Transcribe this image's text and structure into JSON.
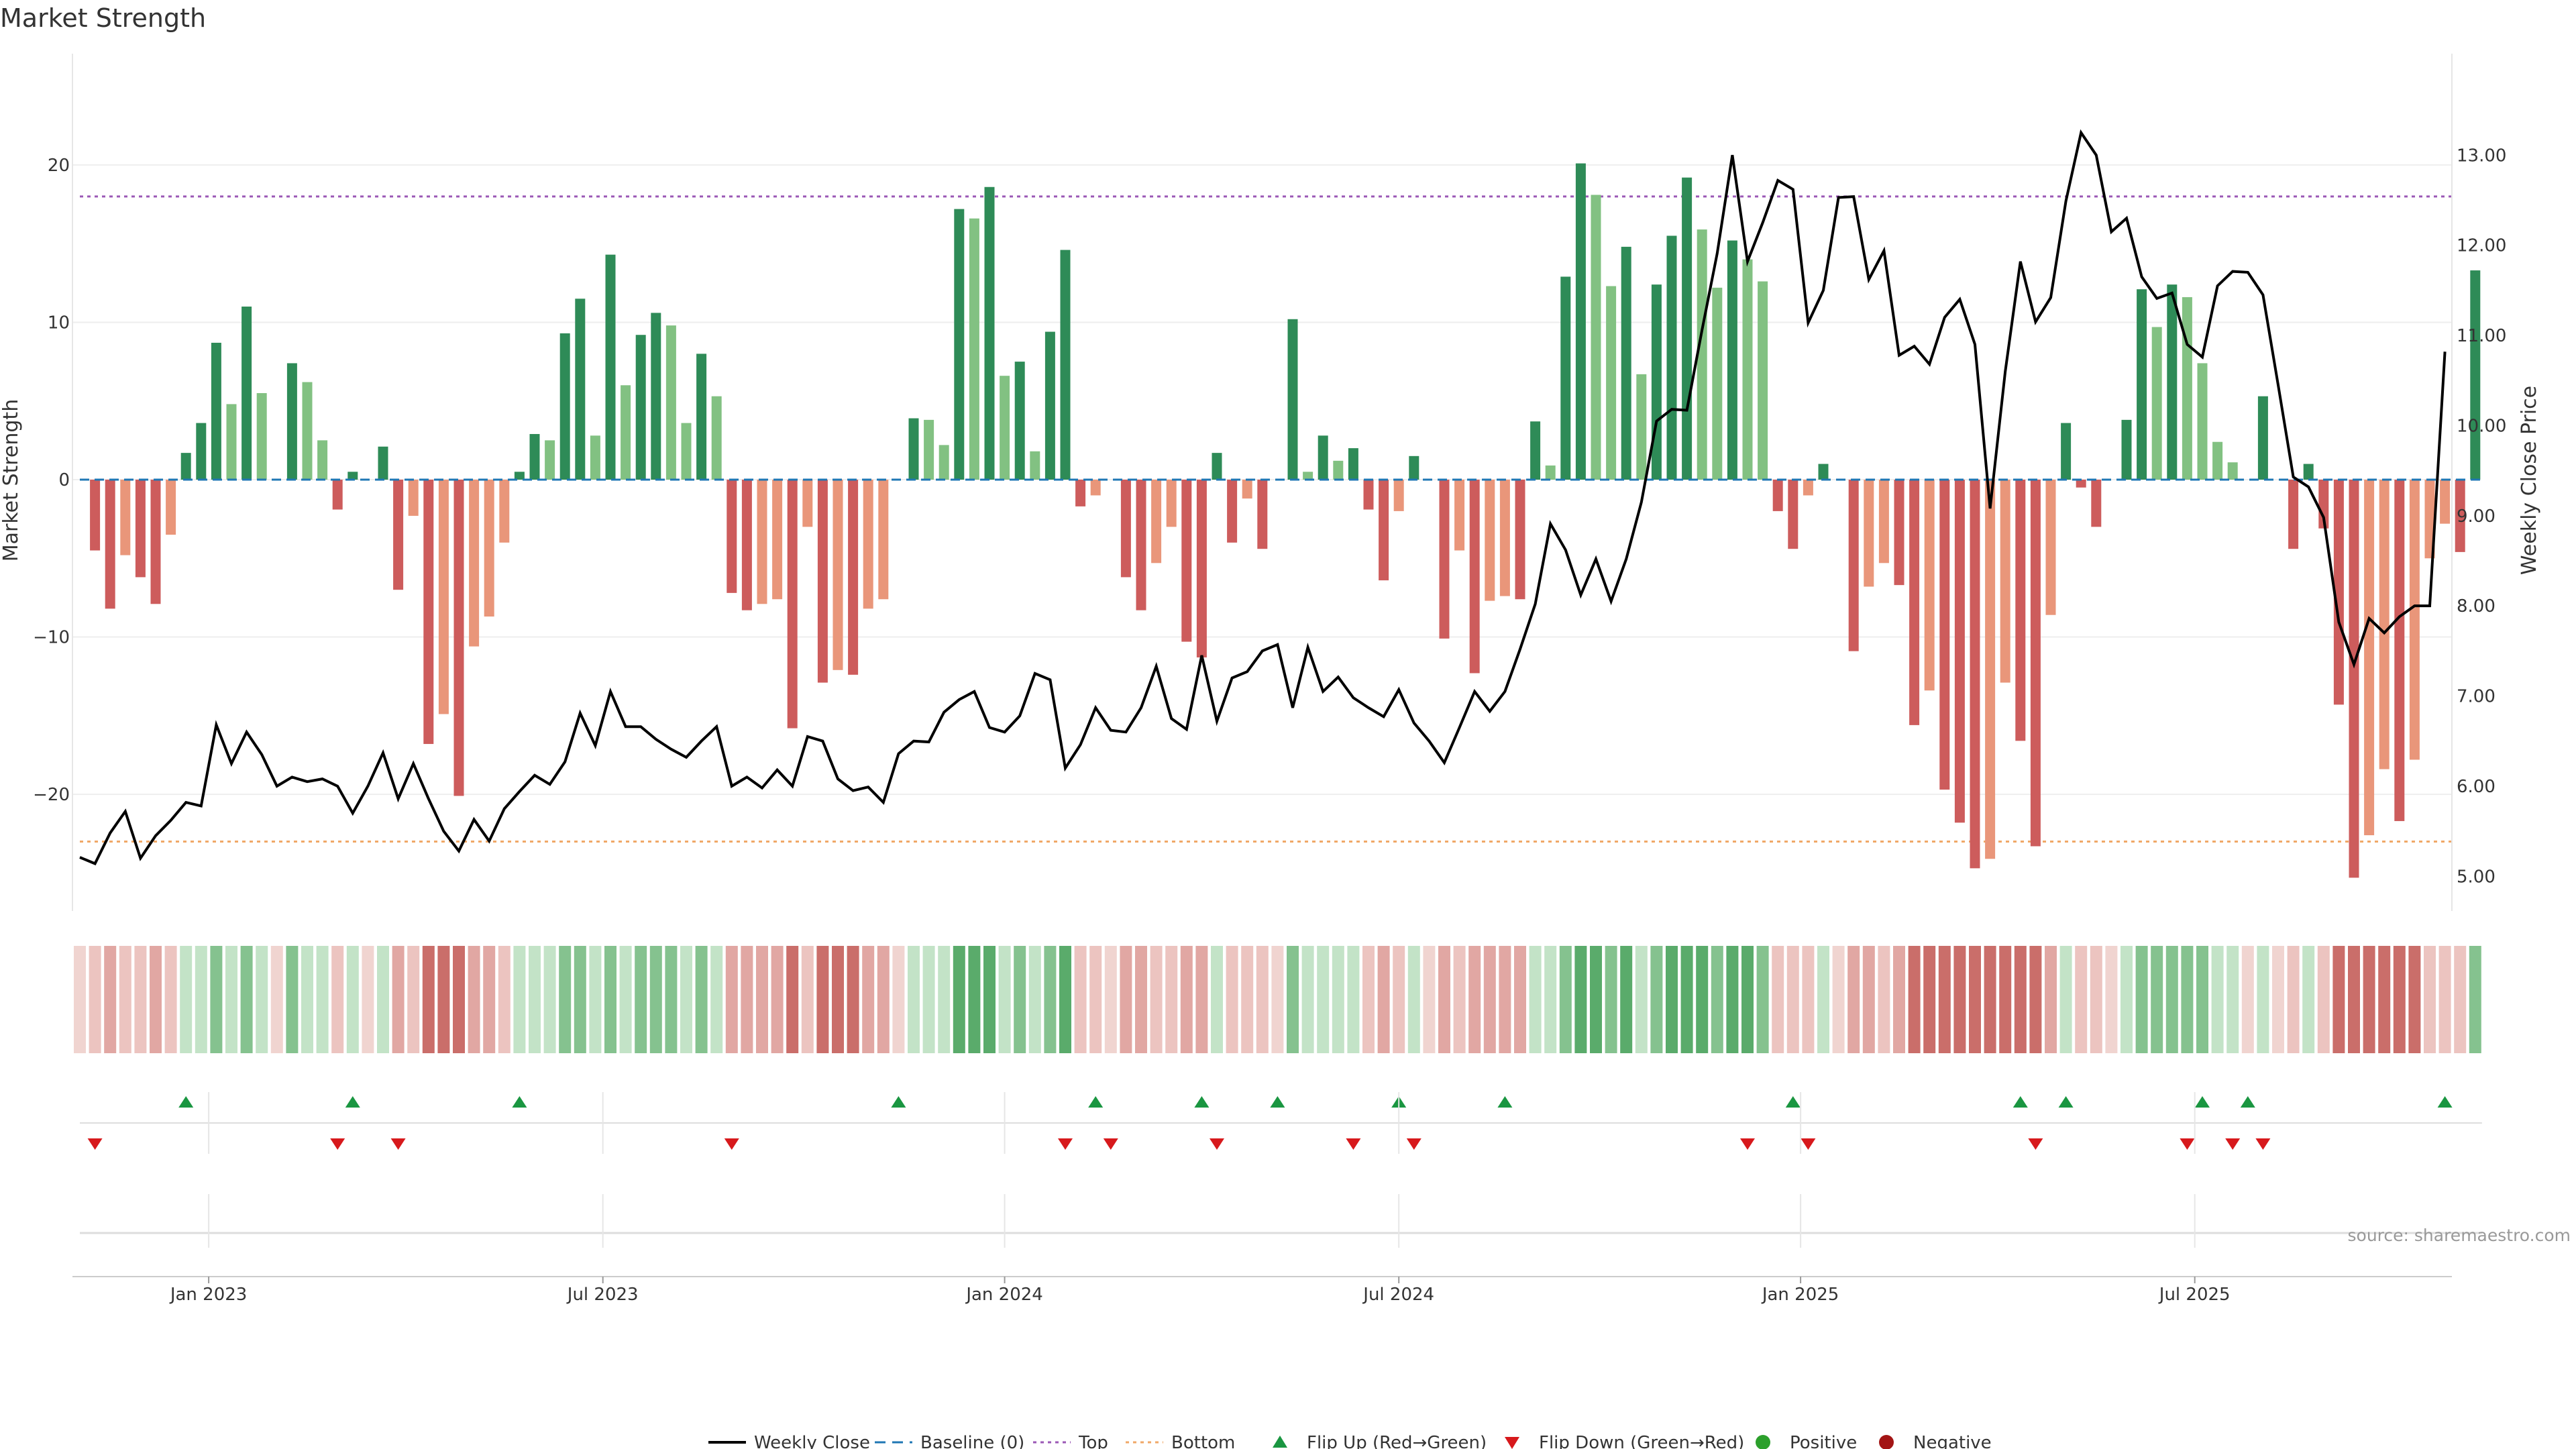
{
  "chart_data": {
    "type": "bar",
    "title": "Market Strength",
    "ylabel": "Market Strength",
    "y2label": "Weekly Close Price",
    "ylim": [
      -27.5,
      27.5
    ],
    "y2lim": [
      4.6,
      14.2
    ],
    "yticks": [
      -20,
      -10,
      0,
      10,
      20
    ],
    "y2ticks": [
      "5.00",
      "6.00",
      "7.00",
      "8.00",
      "9.00",
      "10.00",
      "11.00",
      "12.00",
      "13.00"
    ],
    "top_threshold": 18,
    "bottom_threshold": -23,
    "xticks": [
      {
        "label": "Jan 2023",
        "week": 8.5
      },
      {
        "label": "Jul 2023",
        "week": 34.5
      },
      {
        "label": "Jan 2024",
        "week": 61
      },
      {
        "label": "Jul 2024",
        "week": 87
      },
      {
        "label": "Jan 2025",
        "week": 113.5
      },
      {
        "label": "Jul 2025",
        "week": 139.5
      }
    ],
    "strength": [
      0,
      -4.5,
      -8.2,
      -4.8,
      -6.2,
      -7.9,
      -3.5,
      1.7,
      3.6,
      8.7,
      4.8,
      11.0,
      5.5,
      0,
      7.4,
      6.2,
      2.5,
      -1.9,
      0.5,
      0,
      2.1,
      -7.0,
      -2.3,
      -16.8,
      -14.9,
      -20.1,
      -10.6,
      -8.7,
      -4.0,
      0.5,
      2.9,
      2.5,
      9.3,
      11.5,
      2.8,
      14.3,
      6.0,
      9.2,
      10.6,
      9.8,
      3.6,
      8.0,
      5.3,
      -7.2,
      -8.3,
      -7.9,
      -7.6,
      -15.8,
      -3.0,
      -12.9,
      -12.1,
      -12.4,
      -8.2,
      -7.6,
      0,
      3.9,
      3.8,
      2.2,
      17.2,
      16.6,
      18.6,
      6.6,
      7.5,
      1.8,
      9.4,
      14.6,
      -1.7,
      -1.0,
      0,
      -6.2,
      -8.3,
      -5.3,
      -3.0,
      -10.3,
      -11.3,
      1.7,
      -4.0,
      -1.2,
      -4.4,
      0,
      10.2,
      0.5,
      2.8,
      1.2,
      2.0,
      -1.9,
      -6.4,
      -2.0,
      1.5,
      0,
      -10.1,
      -4.5,
      -12.3,
      -7.7,
      -7.4,
      -7.6,
      3.7,
      0.9,
      12.9,
      20.1,
      18.1,
      12.3,
      14.8,
      6.7,
      12.4,
      15.5,
      19.2,
      15.9,
      12.2,
      15.2,
      14.0,
      12.6,
      -2.0,
      -4.4,
      -1.0,
      1.0,
      0,
      -10.9,
      -6.8,
      -5.3,
      -6.7,
      -15.6,
      -13.4,
      -19.7,
      -21.8,
      -24.7,
      -24.1,
      -12.9,
      -16.6,
      -23.3,
      -8.6,
      3.6,
      -0.5,
      -3.0,
      0,
      3.8,
      12.1,
      9.7,
      12.4,
      11.6,
      7.4,
      2.4,
      1.1,
      0,
      5.3,
      0,
      -4.4,
      1.0,
      -3.1,
      -14.3,
      -25.3,
      -22.6,
      -18.4,
      -21.7,
      -17.8,
      -5.0,
      -2.8,
      -4.6,
      13.3
    ],
    "weekly_close": [
      5.21,
      5.14,
      5.48,
      5.72,
      5.2,
      5.45,
      5.62,
      5.82,
      5.78,
      6.68,
      6.25,
      6.6,
      6.35,
      6.0,
      6.1,
      6.05,
      6.08,
      6.0,
      5.7,
      6.0,
      6.37,
      5.86,
      6.25,
      5.86,
      5.5,
      5.28,
      5.63,
      5.39,
      5.75,
      5.94,
      6.12,
      6.02,
      6.27,
      6.81,
      6.45,
      7.05,
      6.66,
      6.66,
      6.52,
      6.41,
      6.32,
      6.5,
      6.66,
      6.0,
      6.1,
      5.98,
      6.18,
      6.0,
      6.55,
      6.5,
      6.08,
      5.95,
      5.99,
      5.82,
      6.36,
      6.5,
      6.49,
      6.82,
      6.96,
      7.05,
      6.65,
      6.6,
      6.78,
      7.25,
      7.18,
      6.2,
      6.46,
      6.87,
      6.62,
      6.6,
      6.87,
      7.33,
      6.75,
      6.63,
      7.45,
      6.72,
      7.2,
      7.27,
      7.5,
      7.57,
      6.87,
      7.54,
      7.05,
      7.21,
      6.98,
      6.87,
      6.77,
      7.07,
      6.7,
      6.5,
      6.26,
      6.65,
      7.05,
      6.83,
      7.05,
      7.52,
      8.02,
      8.91,
      8.62,
      8.12,
      8.52,
      8.05,
      8.52,
      9.15,
      10.05,
      10.18,
      10.17,
      11.06,
      11.91,
      13.0,
      11.82,
      12.25,
      12.72,
      12.62,
      11.14,
      11.5,
      12.53,
      12.54,
      11.62,
      11.94,
      10.78,
      10.88,
      10.68,
      11.2,
      11.4,
      10.9,
      9.08,
      10.6,
      11.82,
      11.15,
      11.42,
      12.49,
      13.25,
      13.0,
      12.15,
      12.3,
      11.65,
      11.41,
      11.47,
      10.9,
      10.76,
      11.55,
      11.71,
      11.7,
      11.45,
      10.45,
      9.43,
      9.32,
      8.98,
      7.82,
      7.35,
      7.86,
      7.7,
      7.88,
      8.0,
      8.0,
      10.82
    ],
    "heat_strip": [
      0,
      -1,
      -2,
      -1,
      -1,
      -2,
      -1,
      1,
      1,
      2,
      1,
      2,
      1,
      0,
      2,
      1,
      1,
      -1,
      1,
      0,
      1,
      -2,
      -1,
      -3,
      -3,
      -3,
      -2,
      -2,
      -1,
      1,
      1,
      1,
      2,
      2,
      1,
      2,
      1,
      2,
      2,
      2,
      1,
      2,
      1,
      -2,
      -2,
      -2,
      -2,
      -3,
      -1,
      -3,
      -3,
      -3,
      -2,
      -2,
      0,
      1,
      1,
      1,
      3,
      3,
      3,
      1,
      2,
      1,
      2,
      3,
      -1,
      -1,
      0,
      -2,
      -2,
      -1,
      -1,
      -2,
      -2,
      1,
      -1,
      -1,
      -1,
      0,
      2,
      1,
      1,
      1,
      1,
      -1,
      -2,
      -1,
      1,
      0,
      -2,
      -1,
      -2,
      -2,
      -2,
      -2,
      1,
      1,
      2,
      3,
      3,
      2,
      3,
      1,
      2,
      3,
      3,
      3,
      2,
      3,
      3,
      2,
      -1,
      -1,
      -1,
      1,
      0,
      -2,
      -2,
      -1,
      -2,
      -3,
      -3,
      -3,
      -3,
      -3,
      -3,
      -3,
      -3,
      -3,
      -2,
      1,
      -1,
      -1,
      0,
      1,
      2,
      2,
      2,
      2,
      2,
      1,
      1,
      0,
      1,
      0,
      -1,
      1,
      -1,
      -3,
      -3,
      -3,
      -3,
      -3,
      -3,
      -1,
      -1,
      -1,
      2
    ],
    "flip_up_weeks": [
      7,
      18,
      29,
      54,
      67,
      74,
      79,
      87,
      94,
      113,
      128,
      131,
      140,
      143,
      156
    ],
    "flip_down_weeks": [
      1,
      17,
      21,
      43,
      65,
      68,
      75,
      84,
      88,
      110,
      114,
      129,
      139,
      142,
      144
    ],
    "colors": {
      "strong_pos": "#2e8b57",
      "weak_pos": "#82c182",
      "strong_neg": "#cd5c5c",
      "weak_neg": "#e9967a",
      "line": "#000000",
      "top": "#9b59b6",
      "bottom": "#f0a868",
      "baseline": "#1f77b4",
      "flip_up": "#1a9641",
      "flip_down": "#d7191c",
      "dot_pos": "#2ca02c",
      "dot_neg": "#a31515"
    },
    "legend": [
      "Weekly Close",
      "Baseline (0)",
      "Top",
      "Bottom",
      "Flip Up (Red→Green)",
      "Flip Down (Green→Red)",
      "Positive",
      "Negative"
    ]
  },
  "source": "source: sharemaestro.com"
}
